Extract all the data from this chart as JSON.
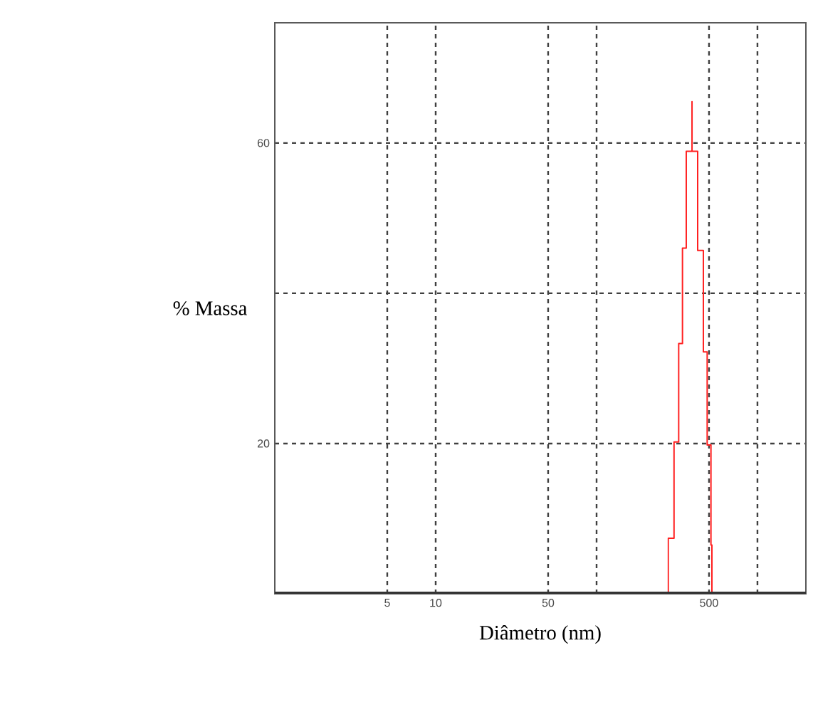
{
  "chart_data": {
    "type": "step",
    "xlabel": "Diâmetro (nm)",
    "ylabel": "% Massa",
    "series": [
      {
        "color": "#ff2020",
        "x": [
          279,
          279,
          303,
          324,
          342,
          361,
          392,
          392,
          425,
          461,
          487,
          514,
          521
        ],
        "values": [
          0,
          7.4,
          20.2,
          33.3,
          46,
          58.9,
          65.5,
          58.9,
          45.7,
          32.2,
          19.8,
          6.5,
          0
        ]
      }
    ],
    "log": "x",
    "xlim": [
      1,
      2000
    ],
    "ylim": [
      0,
      76
    ],
    "xticks": [
      5,
      10,
      50,
      {
        "value": 100,
        "label": null
      },
      500,
      {
        "value": 1000,
        "label": null
      }
    ],
    "yticks": [
      20,
      {
        "value": 40,
        "label": null
      },
      60
    ],
    "grid": true,
    "marker": "none",
    "line_style": "solid"
  }
}
